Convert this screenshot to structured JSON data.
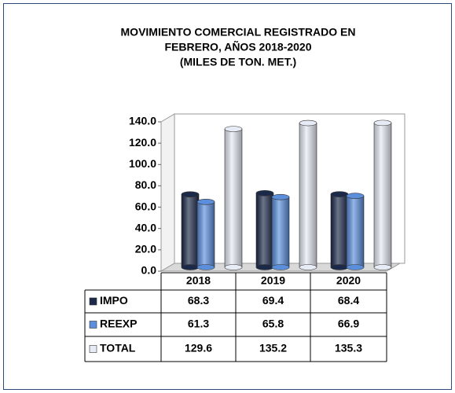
{
  "chart_data": {
    "type": "bar",
    "title": [
      "MOVIMIENTO COMERCIAL REGISTRADO  EN",
      "FEBRERO,  AÑOS 2018-2020",
      "(MILES DE TON. MET.)"
    ],
    "categories": [
      "2018",
      "2019",
      "2020"
    ],
    "series": [
      {
        "name": "IMPO",
        "color": "#1c2a4a",
        "values": [
          68.3,
          69.4,
          68.4
        ]
      },
      {
        "name": "REEXP",
        "color": "#5b8fdc",
        "values": [
          61.3,
          65.8,
          66.9
        ]
      },
      {
        "name": "TOTAL",
        "color": "#e6ebf5",
        "values": [
          129.6,
          135.2,
          135.3
        ]
      }
    ],
    "ylim": [
      0,
      140
    ],
    "yticks": [
      {
        "value": 0,
        "label": "0.0"
      },
      {
        "value": 20,
        "label": "20.0"
      },
      {
        "value": 40,
        "label": "40.0"
      },
      {
        "value": 60,
        "label": "60.0"
      },
      {
        "value": 80,
        "label": "80.0"
      },
      {
        "value": 100,
        "label": "100.0"
      },
      {
        "value": 120,
        "label": "120.0"
      },
      {
        "value": 140,
        "label": "140.0"
      }
    ],
    "data_table": true
  }
}
